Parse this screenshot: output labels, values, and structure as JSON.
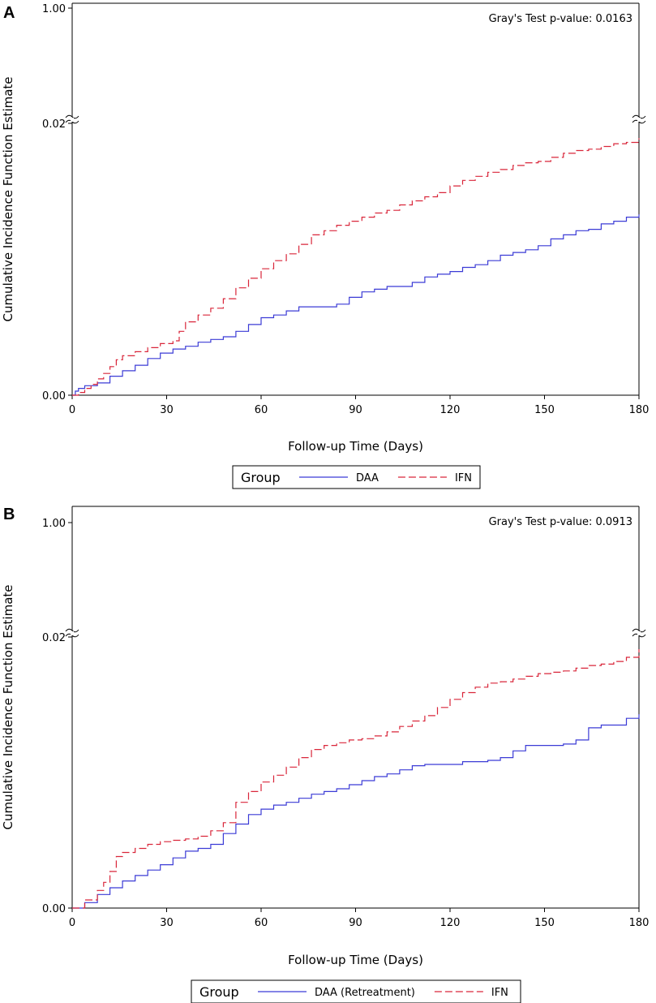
{
  "chart_data": [
    {
      "panel": "A",
      "type": "line",
      "step": true,
      "annotation": "Gray's Test p-value: 0.0163",
      "xlabel": "Follow-up Time (Days)",
      "ylabel": "Cumulative Incidence Function Estimate",
      "xlim": [
        0,
        180
      ],
      "x_ticks": [
        "0",
        "30",
        "60",
        "90",
        "120",
        "150",
        "180"
      ],
      "y_ticks": [
        "0.00",
        "0.02",
        "1.00"
      ],
      "y_axis_break": [
        0.02,
        1.0
      ],
      "legend_title": "Group",
      "legend_position": "bottom",
      "series": [
        {
          "name": "DAA",
          "color": "#3b3bd6",
          "dash": "solid",
          "x": [
            0,
            1,
            2,
            4,
            8,
            12,
            16,
            20,
            24,
            28,
            32,
            36,
            40,
            44,
            48,
            52,
            56,
            60,
            64,
            68,
            72,
            76,
            80,
            84,
            88,
            92,
            96,
            100,
            104,
            108,
            112,
            116,
            120,
            124,
            128,
            132,
            136,
            140,
            144,
            148,
            152,
            156,
            160,
            164,
            168,
            172,
            176,
            180
          ],
          "values": [
            0,
            0.0003,
            0.0005,
            0.0007,
            0.0009,
            0.0014,
            0.0018,
            0.0022,
            0.0027,
            0.0031,
            0.0034,
            0.0036,
            0.0039,
            0.0041,
            0.0043,
            0.0047,
            0.0052,
            0.0057,
            0.0059,
            0.0062,
            0.0065,
            0.0065,
            0.0065,
            0.0067,
            0.0072,
            0.0076,
            0.0078,
            0.008,
            0.008,
            0.0083,
            0.0087,
            0.0089,
            0.0091,
            0.0094,
            0.0096,
            0.0099,
            0.0103,
            0.0105,
            0.0107,
            0.011,
            0.0115,
            0.0118,
            0.0121,
            0.0122,
            0.0126,
            0.0128,
            0.0131,
            0.0133
          ]
        },
        {
          "name": "IFN",
          "color": "#d9263a",
          "dash": "long-dash",
          "x": [
            0,
            2,
            4,
            6,
            8,
            10,
            12,
            14,
            16,
            20,
            24,
            28,
            32,
            34,
            36,
            40,
            44,
            48,
            52,
            56,
            60,
            64,
            68,
            72,
            76,
            80,
            84,
            88,
            92,
            96,
            100,
            104,
            108,
            112,
            116,
            120,
            124,
            128,
            132,
            136,
            140,
            144,
            148,
            152,
            156,
            160,
            164,
            168,
            172,
            176,
            180
          ],
          "values": [
            0,
            0.0002,
            0.0005,
            0.0008,
            0.0012,
            0.0016,
            0.0021,
            0.0026,
            0.0029,
            0.0032,
            0.0035,
            0.0038,
            0.004,
            0.0047,
            0.0054,
            0.0059,
            0.0064,
            0.0071,
            0.0079,
            0.0086,
            0.0093,
            0.0099,
            0.0104,
            0.0111,
            0.0118,
            0.0121,
            0.0125,
            0.0128,
            0.0131,
            0.0134,
            0.0136,
            0.014,
            0.0143,
            0.0146,
            0.0149,
            0.0154,
            0.0158,
            0.0161,
            0.0164,
            0.0166,
            0.0169,
            0.0171,
            0.0172,
            0.0175,
            0.0178,
            0.018,
            0.0181,
            0.0183,
            0.0185,
            0.0186,
            0.0189
          ]
        }
      ]
    },
    {
      "panel": "B",
      "type": "line",
      "step": true,
      "annotation": "Gray's Test p-value: 0.0913",
      "xlabel": "Follow-up Time (Days)",
      "ylabel": "Cumulative Incidence Function Estimate",
      "xlim": [
        0,
        180
      ],
      "x_ticks": [
        "0",
        "30",
        "60",
        "90",
        "120",
        "150",
        "180"
      ],
      "y_ticks": [
        "0.00",
        "0.02",
        "1.00"
      ],
      "y_axis_break": [
        0.02,
        1.0
      ],
      "legend_title": "Group",
      "legend_position": "bottom",
      "series": [
        {
          "name": "DAA (Retreatment)",
          "color": "#3b3bd6",
          "dash": "solid",
          "x": [
            0,
            4,
            8,
            12,
            16,
            20,
            24,
            28,
            32,
            36,
            40,
            44,
            48,
            52,
            56,
            60,
            64,
            68,
            72,
            76,
            80,
            84,
            88,
            92,
            96,
            100,
            104,
            108,
            112,
            116,
            120,
            124,
            128,
            132,
            136,
            140,
            144,
            148,
            152,
            156,
            160,
            164,
            168,
            172,
            176,
            180
          ],
          "values": [
            0,
            0.0004,
            0.001,
            0.0015,
            0.002,
            0.0024,
            0.0028,
            0.0032,
            0.0037,
            0.0042,
            0.0044,
            0.0047,
            0.0055,
            0.0062,
            0.0069,
            0.0073,
            0.0076,
            0.0078,
            0.0081,
            0.0084,
            0.0086,
            0.0088,
            0.0091,
            0.0094,
            0.0097,
            0.0099,
            0.0102,
            0.0105,
            0.0106,
            0.0106,
            0.0106,
            0.0108,
            0.0108,
            0.0109,
            0.0111,
            0.0116,
            0.012,
            0.012,
            0.012,
            0.0121,
            0.0124,
            0.0133,
            0.0135,
            0.0135,
            0.014,
            0.0143
          ]
        },
        {
          "name": "IFN",
          "color": "#d9263a",
          "dash": "long-dash",
          "x": [
            0,
            4,
            8,
            10,
            12,
            14,
            16,
            20,
            24,
            28,
            32,
            36,
            40,
            44,
            48,
            52,
            56,
            60,
            64,
            68,
            72,
            76,
            80,
            84,
            88,
            92,
            96,
            100,
            104,
            108,
            112,
            116,
            120,
            124,
            128,
            132,
            136,
            140,
            144,
            148,
            152,
            156,
            160,
            164,
            168,
            172,
            176,
            180
          ],
          "values": [
            0,
            0.0006,
            0.0013,
            0.0019,
            0.0027,
            0.0038,
            0.0041,
            0.0044,
            0.0047,
            0.0049,
            0.005,
            0.0051,
            0.0053,
            0.0057,
            0.0063,
            0.0078,
            0.0086,
            0.0093,
            0.0098,
            0.0104,
            0.0111,
            0.0117,
            0.012,
            0.0122,
            0.0124,
            0.0125,
            0.0127,
            0.013,
            0.0134,
            0.0138,
            0.0142,
            0.0148,
            0.0154,
            0.0159,
            0.0163,
            0.0166,
            0.0167,
            0.0169,
            0.0171,
            0.0173,
            0.0174,
            0.0175,
            0.0177,
            0.0179,
            0.018,
            0.0182,
            0.0185,
            0.0191
          ]
        }
      ]
    }
  ]
}
